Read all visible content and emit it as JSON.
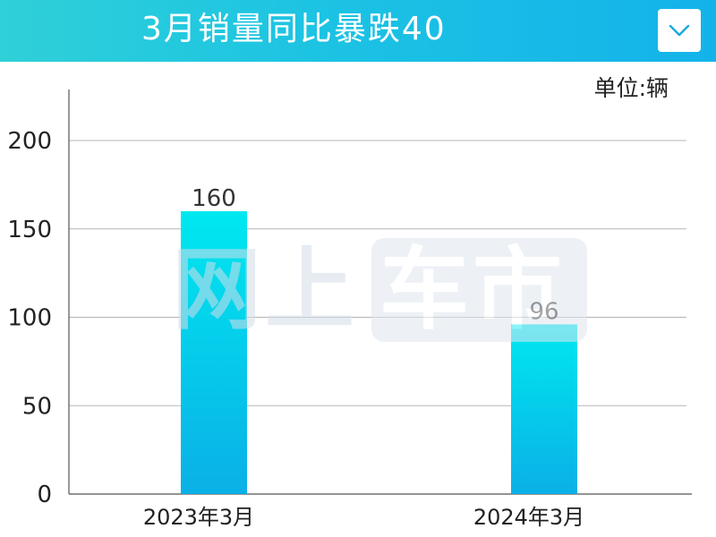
{
  "header": {
    "title": "3月销量同比暴跌40",
    "dropdown_icon": "chevron-down-icon"
  },
  "unit_label": "单位:辆",
  "watermark": {
    "left_text": "网上",
    "right_text": "车市"
  },
  "colors": {
    "header_start": "#2fd0d8",
    "header_end": "#13b3ea",
    "bar_top": "#00e8f0",
    "bar_bottom": "#0ab0e6",
    "grid": "#b5b5b5",
    "chevron": "#1aa8e0"
  },
  "chart_data": {
    "type": "bar",
    "categories": [
      "2023年3月",
      "2024年3月"
    ],
    "values": [
      160,
      96
    ],
    "value_labels": [
      "160",
      "96"
    ],
    "title": "3月销量同比暴跌40",
    "xlabel": "",
    "ylabel": "",
    "unit": "单位:辆",
    "ylim": [
      0,
      220
    ],
    "yticks": [
      0,
      50,
      100,
      150,
      200
    ],
    "ytick_labels": [
      "0",
      "50",
      "100",
      "150",
      "200"
    ],
    "grid": true,
    "legend": "none"
  }
}
